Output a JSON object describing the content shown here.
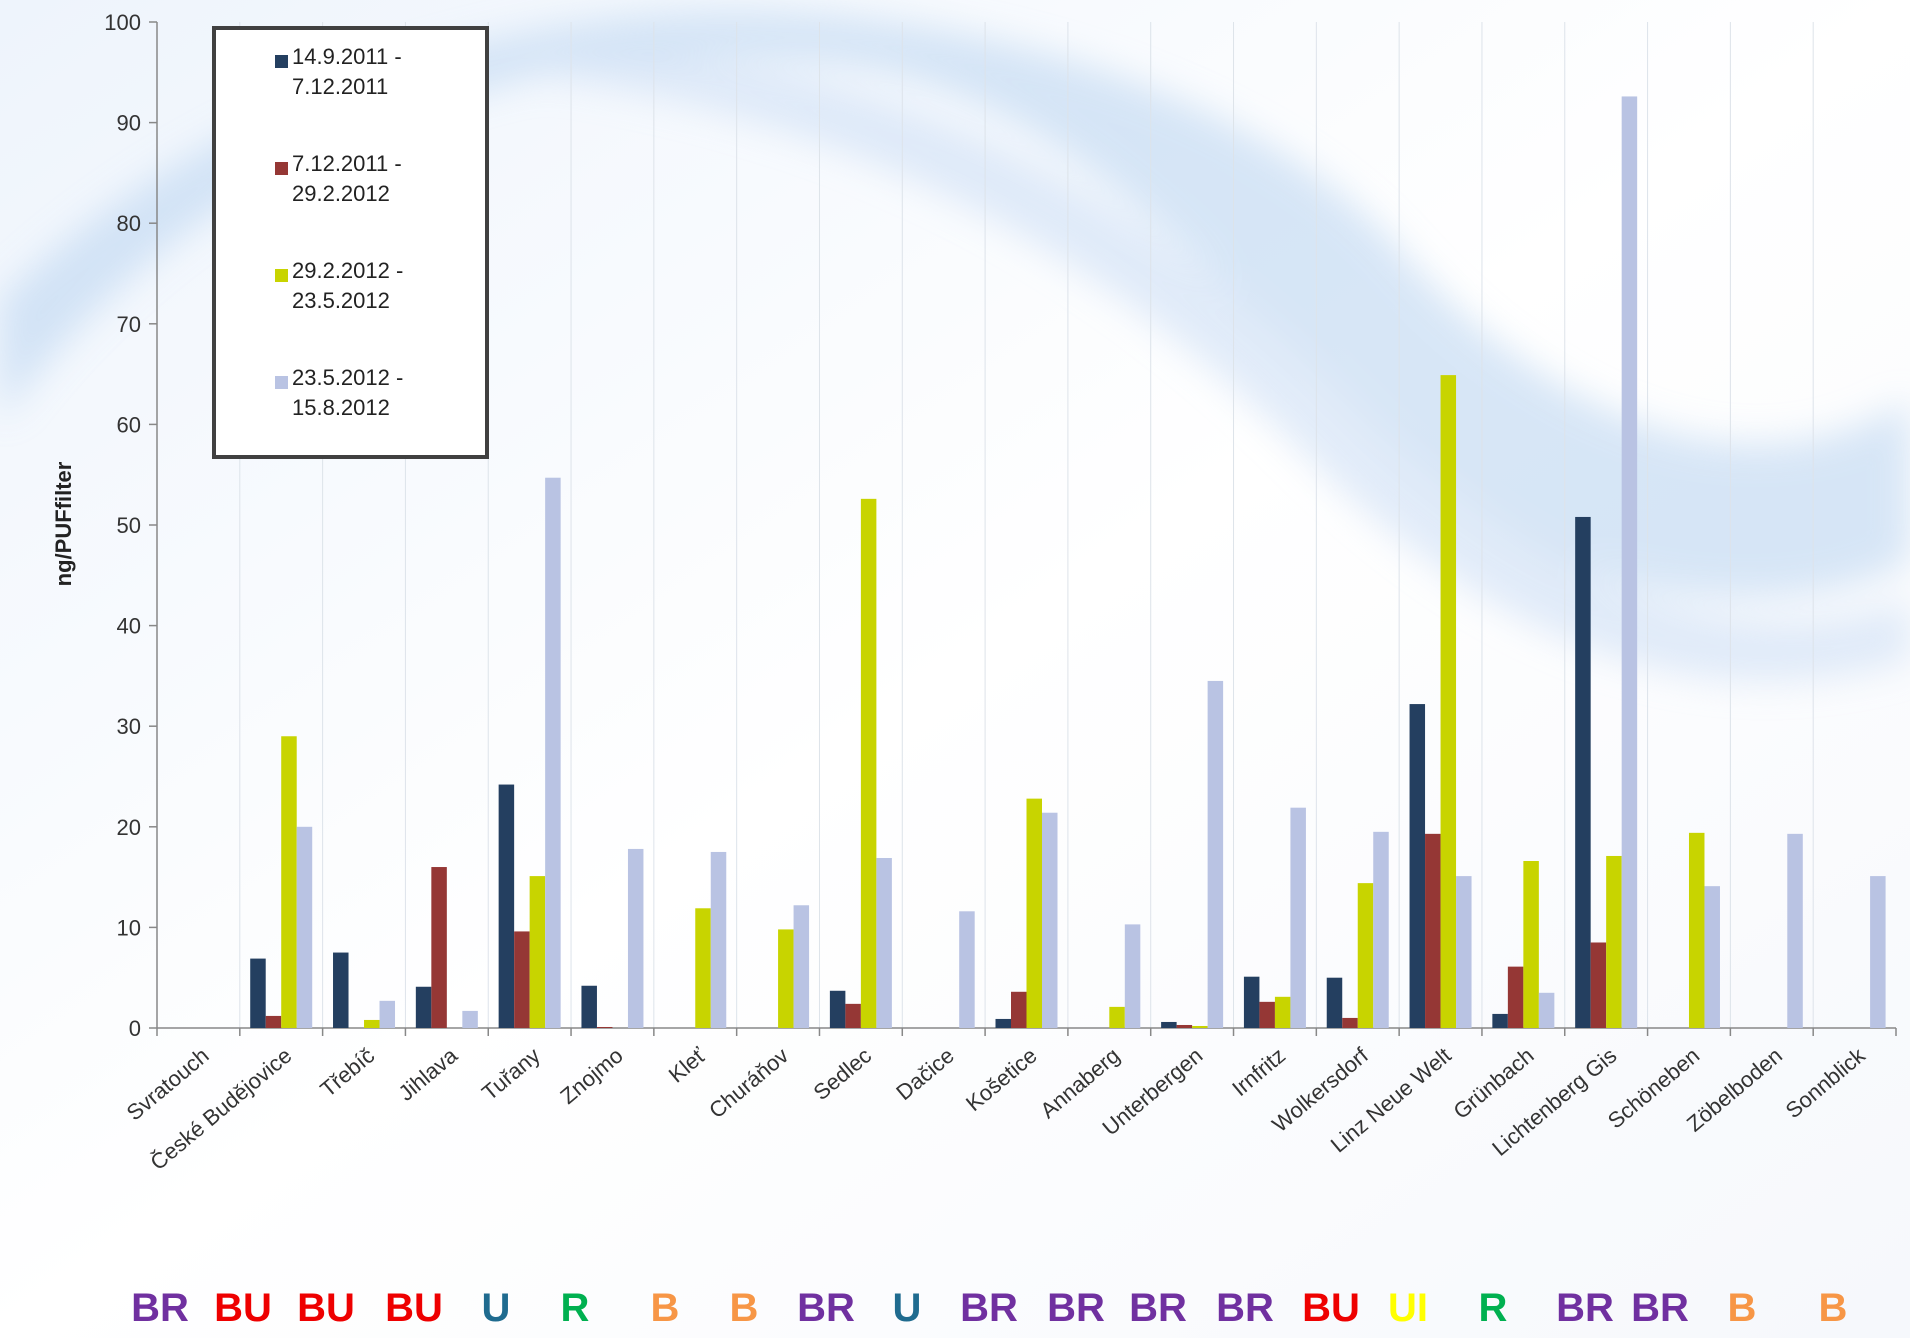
{
  "chart_data": {
    "type": "bar",
    "y_label": "ng/PUFfilter",
    "categories": [
      "Svratouch",
      "České Budějovice",
      "Třebíč",
      "Jihlava",
      "Tuřany",
      "Znojmo",
      "Kleť",
      "Churáňov",
      "Sedlec",
      "Dačice",
      "Košetice",
      "Annaberg",
      "Unterbergen",
      "Irnfritz",
      "Wolkersdorf",
      "Linz Neue Welt",
      "Grünbach",
      "Lichtenberg Gis",
      "Schöneben",
      "Zöbelboden",
      "Sonnblick"
    ],
    "series": [
      {
        "name": "14.9.2011 - 7.12.2011",
        "color": "#243f60",
        "values": [
          null,
          6.9,
          7.5,
          4.1,
          24.2,
          4.2,
          null,
          null,
          3.7,
          null,
          0.9,
          null,
          0.6,
          5.1,
          5.0,
          32.2,
          1.4,
          50.8,
          null,
          null,
          null
        ]
      },
      {
        "name": "7.12.2011 - 29.2.2012",
        "color": "#953735",
        "values": [
          null,
          1.2,
          null,
          16.0,
          9.6,
          0.1,
          null,
          null,
          2.4,
          null,
          3.6,
          null,
          0.3,
          2.6,
          1.0,
          19.3,
          6.1,
          8.5,
          null,
          null,
          null
        ]
      },
      {
        "name": "29.2.2012 - 23.5.2012",
        "color": "#c8d400",
        "values": [
          null,
          29.0,
          0.8,
          null,
          15.1,
          null,
          11.9,
          9.8,
          52.6,
          null,
          22.8,
          2.1,
          0.2,
          3.1,
          14.4,
          64.9,
          16.6,
          17.1,
          19.4,
          null,
          null
        ]
      },
      {
        "name": "23.5.2012 - 15.8.2012",
        "color": "#b9c3e3",
        "values": [
          null,
          20.0,
          2.7,
          1.7,
          54.7,
          17.8,
          17.5,
          12.2,
          16.9,
          11.6,
          21.4,
          10.3,
          34.5,
          21.9,
          19.5,
          15.1,
          3.5,
          92.6,
          14.1,
          19.3,
          15.1
        ]
      }
    ],
    "ylim": [
      0,
      100
    ],
    "yticks": [
      0,
      10,
      20,
      30,
      40,
      50,
      60,
      70,
      80,
      90,
      100
    ],
    "grid": true,
    "site_codes": [
      {
        "label": "BR",
        "color": "#7030a0"
      },
      {
        "label": "BU",
        "color": "#ee0000"
      },
      {
        "label": "BU",
        "color": "#ee0000"
      },
      {
        "label": "BU",
        "color": "#ee0000"
      },
      {
        "label": "U",
        "color": "#1f6b8f"
      },
      {
        "label": "R",
        "color": "#00b050"
      },
      {
        "label": "B",
        "color": "#f79646"
      },
      {
        "label": "B",
        "color": "#f79646"
      },
      {
        "label": "BR",
        "color": "#7030a0"
      },
      {
        "label": "U",
        "color": "#1f6b8f"
      },
      {
        "label": "BR",
        "color": "#7030a0"
      },
      {
        "label": "BR",
        "color": "#7030a0"
      },
      {
        "label": "BR",
        "color": "#7030a0"
      },
      {
        "label": "BR",
        "color": "#7030a0"
      },
      {
        "label": "BU",
        "color": "#ee0000"
      },
      {
        "label": "UI",
        "color": "#ffff00"
      },
      {
        "label": "R",
        "color": "#00b050"
      },
      {
        "label": "BR",
        "color": "#7030a0"
      },
      {
        "label": "BR",
        "color": "#7030a0"
      },
      {
        "label": "B",
        "color": "#f79646"
      },
      {
        "label": "B",
        "color": "#f79646"
      }
    ]
  }
}
